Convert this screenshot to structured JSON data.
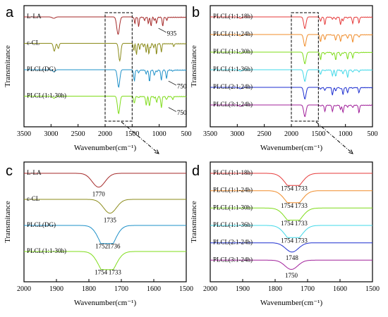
{
  "chart_data": [
    {
      "panel": "a",
      "type": "line",
      "xlabel": "Wavenumber(cm⁻¹)",
      "ylabel": "Transmitance",
      "xlim": [
        3500,
        500
      ],
      "x_reversed": true,
      "xticks": [
        "3500",
        "3000",
        "2500",
        "2000",
        "1500",
        "1000",
        "500"
      ],
      "series": [
        {
          "name": "L-LA",
          "color": "#a52a2a",
          "annotation": "935"
        },
        {
          "name": "ε-CL",
          "color": "#8b8b1a"
        },
        {
          "name": "PLCL(DG)",
          "color": "#1e90c8",
          "annotation": "750"
        },
        {
          "name": "PLCL(1:1-30h)",
          "color": "#7fdc1a",
          "annotation": "750"
        }
      ]
    },
    {
      "panel": "b",
      "type": "line",
      "xlabel": "Wavenumber(cm⁻¹)",
      "ylabel": "Transmitance",
      "xlim": [
        3500,
        500
      ],
      "x_reversed": true,
      "xticks": [
        "3500",
        "3000",
        "2500",
        "2000",
        "1500",
        "1000",
        "500"
      ],
      "series": [
        {
          "name": "PLCL(1:1-18h)",
          "color": "#e63a3a"
        },
        {
          "name": "PLCL(1:1-24h)",
          "color": "#f08c2a"
        },
        {
          "name": "PLCL(1:1-30h)",
          "color": "#7fdc1a"
        },
        {
          "name": "PLCL(1:1-36h)",
          "color": "#40d8e8"
        },
        {
          "name": "PLCL(2:1-24h)",
          "color": "#1c2ed0"
        },
        {
          "name": "PLCL(3:1-24h)",
          "color": "#a0209a"
        }
      ]
    },
    {
      "panel": "c",
      "type": "line",
      "xlabel": "Wavenumber(cm⁻¹)",
      "ylabel": "Transmitance",
      "xlim": [
        2000,
        1500
      ],
      "x_reversed": true,
      "xticks": [
        "2000",
        "1900",
        "1800",
        "1700",
        "1600",
        "1500"
      ],
      "series": [
        {
          "name": "L-LA",
          "color": "#a52a2a",
          "peaks": [
            "1770"
          ]
        },
        {
          "name": "ε-CL",
          "color": "#8b8b1a",
          "peaks": [
            "1735"
          ]
        },
        {
          "name": "PLCL(DG)",
          "color": "#1e90c8",
          "peaks": [
            "1752",
            "1736"
          ]
        },
        {
          "name": "PLCL(1:1-30h)",
          "color": "#7fdc1a",
          "peaks": [
            "1754",
            "1733"
          ]
        }
      ]
    },
    {
      "panel": "d",
      "type": "line",
      "xlabel": "Wavenumber(cm⁻¹)",
      "ylabel": "Transmitance",
      "xlim": [
        2000,
        1500
      ],
      "x_reversed": true,
      "xticks": [
        "2000",
        "1900",
        "1800",
        "1700",
        "1600",
        "1500"
      ],
      "series": [
        {
          "name": "PLCL(1:1-18h)",
          "color": "#e63a3a",
          "peaks": [
            "1754",
            "1733"
          ]
        },
        {
          "name": "PLCL(1:1-24h)",
          "color": "#f08c2a",
          "peaks": [
            "1754",
            "1733"
          ]
        },
        {
          "name": "PLCL(1:1-30h)",
          "color": "#7fdc1a",
          "peaks": [
            "1754",
            "1733"
          ]
        },
        {
          "name": "PLCL(1:1-36h)",
          "color": "#40d8e8",
          "peaks": [
            "1754",
            "1733"
          ]
        },
        {
          "name": "PLCL(2:1-24h)",
          "color": "#1c2ed0",
          "peaks": [
            "1748"
          ]
        },
        {
          "name": "PLCL(3:1-24h)",
          "color": "#a0209a",
          "peaks": [
            "1750"
          ]
        }
      ]
    }
  ]
}
